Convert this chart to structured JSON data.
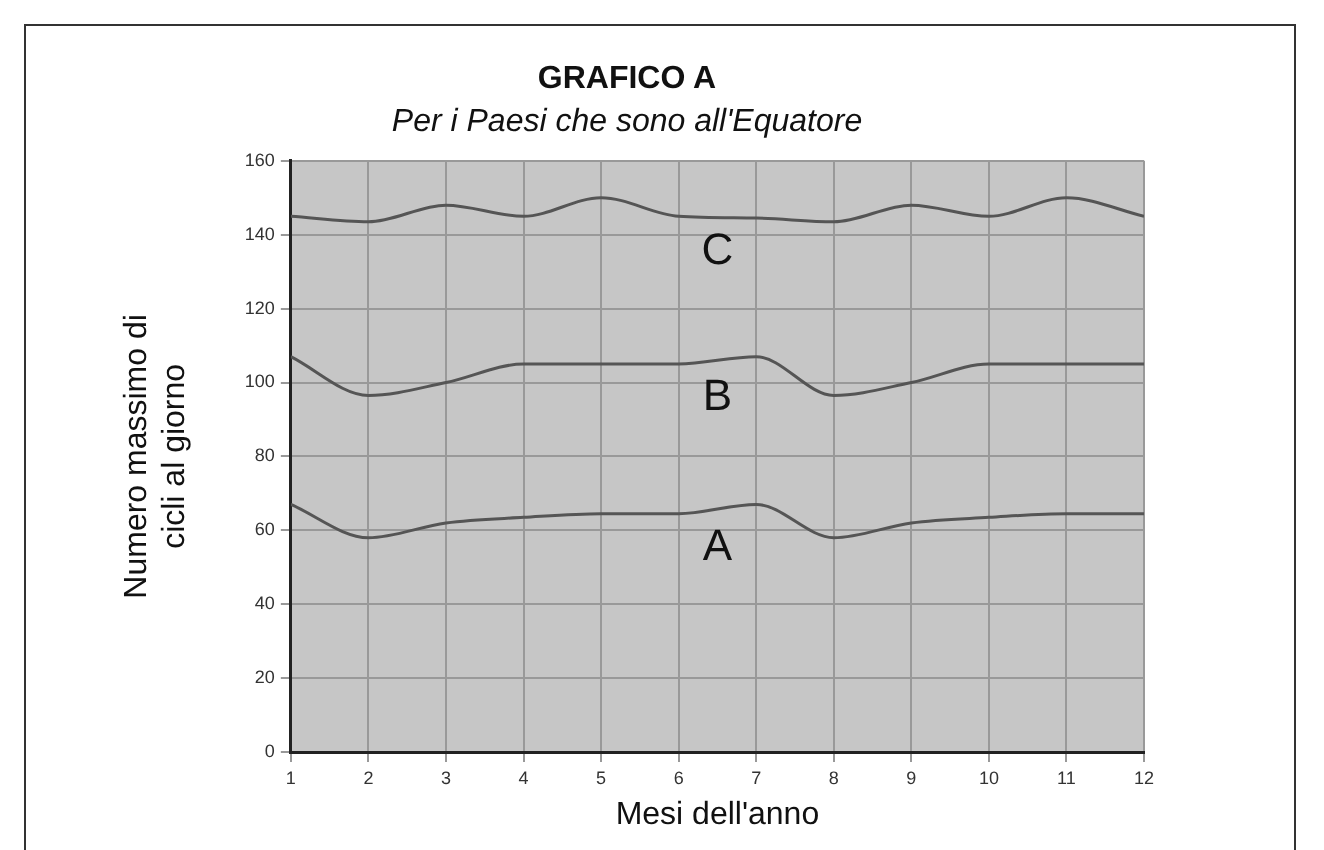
{
  "chart_data": {
    "type": "line",
    "title": "GRAFICO A",
    "subtitle": "Per i Paesi che sono all'Equatore",
    "xlabel": "Mesi dell'anno",
    "ylabel": "Numero massimo di cicli al giorno",
    "x": [
      1,
      2,
      3,
      4,
      5,
      6,
      7,
      8,
      9,
      10,
      11,
      12
    ],
    "series": [
      {
        "name": "C",
        "color": "#555555",
        "values": [
          145,
          143.5,
          148,
          145,
          150,
          145,
          144.5,
          143.5,
          148,
          145,
          150,
          145
        ]
      },
      {
        "name": "B",
        "color": "#555555",
        "values": [
          107,
          96.5,
          100,
          105,
          105,
          105,
          107,
          96.5,
          100,
          105,
          105,
          105
        ]
      },
      {
        "name": "A",
        "color": "#555555",
        "values": [
          67,
          58,
          62,
          63.5,
          64.5,
          64.5,
          67,
          58,
          62,
          63.5,
          64.5,
          64.5
        ]
      }
    ],
    "xlim": [
      1,
      12
    ],
    "xticks": [
      1,
      2,
      3,
      4,
      5,
      6,
      7,
      8,
      9,
      10,
      11,
      12
    ],
    "ylim": [
      0,
      160
    ],
    "yticks": [
      0,
      20,
      40,
      60,
      80,
      100,
      120,
      140,
      160
    ],
    "grid": true,
    "legend": false,
    "marker": "none",
    "line_style": "solid"
  }
}
